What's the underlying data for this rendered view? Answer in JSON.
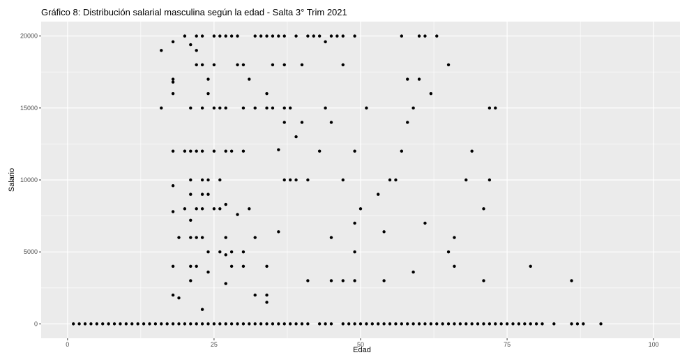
{
  "chart_data": {
    "type": "scatter",
    "title": "Gráfico 8: Distribución salarial masculina según la edad - Salta 3° Trim 2021",
    "xlabel": "Edad",
    "ylabel": "Salario",
    "xlim": [
      -4.5,
      104.5
    ],
    "ylim": [
      -1000,
      21000
    ],
    "x_ticks": [
      0,
      25,
      50,
      75,
      100
    ],
    "y_ticks": [
      0,
      5000,
      10000,
      15000,
      20000
    ],
    "x_tick_labels": [
      "0",
      "25",
      "50",
      "75",
      "100"
    ],
    "y_tick_labels": [
      "0",
      "5000",
      "10000",
      "15000",
      "20000"
    ],
    "grid": true,
    "legend": "none",
    "colors": {
      "panel": "#ebebeb",
      "grid": "#ffffff",
      "point": "#000000"
    },
    "points": [
      [
        1,
        0
      ],
      [
        2,
        0
      ],
      [
        3,
        0
      ],
      [
        4,
        0
      ],
      [
        5,
        0
      ],
      [
        6,
        0
      ],
      [
        7,
        0
      ],
      [
        8,
        0
      ],
      [
        9,
        0
      ],
      [
        10,
        0
      ],
      [
        11,
        0
      ],
      [
        12,
        0
      ],
      [
        13,
        0
      ],
      [
        14,
        0
      ],
      [
        15,
        0
      ],
      [
        16,
        0
      ],
      [
        17,
        0
      ],
      [
        18,
        0
      ],
      [
        19,
        0
      ],
      [
        20,
        0
      ],
      [
        21,
        0
      ],
      [
        22,
        0
      ],
      [
        23,
        0
      ],
      [
        24,
        0
      ],
      [
        25,
        0
      ],
      [
        26,
        0
      ],
      [
        27,
        0
      ],
      [
        28,
        0
      ],
      [
        29,
        0
      ],
      [
        30,
        0
      ],
      [
        31,
        0
      ],
      [
        32,
        0
      ],
      [
        33,
        0
      ],
      [
        34,
        0
      ],
      [
        35,
        0
      ],
      [
        36,
        0
      ],
      [
        37,
        0
      ],
      [
        38,
        0
      ],
      [
        39,
        0
      ],
      [
        40,
        0
      ],
      [
        41,
        0
      ],
      [
        43,
        0
      ],
      [
        44,
        0
      ],
      [
        45,
        0
      ],
      [
        47,
        0
      ],
      [
        48,
        0
      ],
      [
        49,
        0
      ],
      [
        50,
        0
      ],
      [
        51,
        0
      ],
      [
        52,
        0
      ],
      [
        53,
        0
      ],
      [
        54,
        0
      ],
      [
        55,
        0
      ],
      [
        56,
        0
      ],
      [
        57,
        0
      ],
      [
        58,
        0
      ],
      [
        59,
        0
      ],
      [
        60,
        0
      ],
      [
        61,
        0
      ],
      [
        62,
        0
      ],
      [
        63,
        0
      ],
      [
        64,
        0
      ],
      [
        65,
        0
      ],
      [
        66,
        0
      ],
      [
        67,
        0
      ],
      [
        68,
        0
      ],
      [
        69,
        0
      ],
      [
        70,
        0
      ],
      [
        71,
        0
      ],
      [
        72,
        0
      ],
      [
        73,
        0
      ],
      [
        74,
        0
      ],
      [
        75,
        0
      ],
      [
        76,
        0
      ],
      [
        77,
        0
      ],
      [
        78,
        0
      ],
      [
        79,
        0
      ],
      [
        80,
        0
      ],
      [
        81,
        0
      ],
      [
        83,
        0
      ],
      [
        86,
        0
      ],
      [
        87,
        0
      ],
      [
        88,
        0
      ],
      [
        91,
        0
      ],
      [
        20,
        20000
      ],
      [
        22,
        20000
      ],
      [
        23,
        20000
      ],
      [
        25,
        20000
      ],
      [
        26,
        20000
      ],
      [
        27,
        20000
      ],
      [
        28,
        20000
      ],
      [
        29,
        20000
      ],
      [
        32,
        20000
      ],
      [
        33,
        20000
      ],
      [
        34,
        20000
      ],
      [
        35,
        20000
      ],
      [
        36,
        20000
      ],
      [
        37,
        20000
      ],
      [
        39,
        20000
      ],
      [
        41,
        20000
      ],
      [
        42,
        20000
      ],
      [
        43,
        20000
      ],
      [
        45,
        20000
      ],
      [
        46,
        20000
      ],
      [
        47,
        20000
      ],
      [
        49,
        20000
      ],
      [
        57,
        20000
      ],
      [
        60,
        20000
      ],
      [
        61,
        20000
      ],
      [
        63,
        20000
      ],
      [
        16,
        19000
      ],
      [
        18,
        19600
      ],
      [
        21,
        19400
      ],
      [
        22,
        19000
      ],
      [
        44,
        19600
      ],
      [
        22,
        18000
      ],
      [
        23,
        18000
      ],
      [
        25,
        18000
      ],
      [
        29,
        18000
      ],
      [
        30,
        18000
      ],
      [
        35,
        18000
      ],
      [
        37,
        18000
      ],
      [
        40,
        18000
      ],
      [
        47,
        18000
      ],
      [
        65,
        18000
      ],
      [
        18,
        17000
      ],
      [
        18,
        16800
      ],
      [
        24,
        17000
      ],
      [
        31,
        17000
      ],
      [
        58,
        17000
      ],
      [
        60,
        17000
      ],
      [
        18,
        16000
      ],
      [
        24,
        16000
      ],
      [
        34,
        16000
      ],
      [
        62,
        16000
      ],
      [
        16,
        15000
      ],
      [
        21,
        15000
      ],
      [
        23,
        15000
      ],
      [
        25,
        15000
      ],
      [
        26,
        15000
      ],
      [
        27,
        15000
      ],
      [
        30,
        15000
      ],
      [
        32,
        15000
      ],
      [
        34,
        15000
      ],
      [
        35,
        15000
      ],
      [
        37,
        15000
      ],
      [
        38,
        15000
      ],
      [
        44,
        15000
      ],
      [
        51,
        15000
      ],
      [
        59,
        15000
      ],
      [
        72,
        15000
      ],
      [
        73,
        15000
      ],
      [
        37,
        14000
      ],
      [
        40,
        14000
      ],
      [
        45,
        14000
      ],
      [
        58,
        14000
      ],
      [
        39,
        13000
      ],
      [
        18,
        12000
      ],
      [
        20,
        12000
      ],
      [
        21,
        12000
      ],
      [
        22,
        12000
      ],
      [
        23,
        12000
      ],
      [
        25,
        12000
      ],
      [
        27,
        12000
      ],
      [
        28,
        12000
      ],
      [
        30,
        12000
      ],
      [
        36,
        12100
      ],
      [
        43,
        12000
      ],
      [
        49,
        12000
      ],
      [
        57,
        12000
      ],
      [
        69,
        12000
      ],
      [
        21,
        10000
      ],
      [
        23,
        10000
      ],
      [
        24,
        10000
      ],
      [
        26,
        10000
      ],
      [
        37,
        10000
      ],
      [
        38,
        10000
      ],
      [
        39,
        10000
      ],
      [
        41,
        10000
      ],
      [
        47,
        10000
      ],
      [
        55,
        10000
      ],
      [
        56,
        10000
      ],
      [
        68,
        10000
      ],
      [
        72,
        10000
      ],
      [
        18,
        9600
      ],
      [
        21,
        9000
      ],
      [
        23,
        9000
      ],
      [
        24,
        9000
      ],
      [
        53,
        9000
      ],
      [
        27,
        8300
      ],
      [
        20,
        8000
      ],
      [
        22,
        8000
      ],
      [
        23,
        8000
      ],
      [
        25,
        8000
      ],
      [
        26,
        8000
      ],
      [
        31,
        8000
      ],
      [
        50,
        8000
      ],
      [
        71,
        8000
      ],
      [
        18,
        7800
      ],
      [
        29,
        7600
      ],
      [
        21,
        7200
      ],
      [
        49,
        7000
      ],
      [
        61,
        7000
      ],
      [
        19,
        6000
      ],
      [
        21,
        6000
      ],
      [
        22,
        6000
      ],
      [
        23,
        6000
      ],
      [
        27,
        6000
      ],
      [
        32,
        6000
      ],
      [
        45,
        6000
      ],
      [
        66,
        6000
      ],
      [
        36,
        6400
      ],
      [
        54,
        6400
      ],
      [
        24,
        5000
      ],
      [
        26,
        5000
      ],
      [
        27,
        4800
      ],
      [
        28,
        5000
      ],
      [
        30,
        5000
      ],
      [
        49,
        5000
      ],
      [
        65,
        5000
      ],
      [
        18,
        4000
      ],
      [
        21,
        4000
      ],
      [
        22,
        4000
      ],
      [
        28,
        4000
      ],
      [
        30,
        4000
      ],
      [
        34,
        4000
      ],
      [
        66,
        4000
      ],
      [
        79,
        4000
      ],
      [
        24,
        3600
      ],
      [
        59,
        3600
      ],
      [
        21,
        3000
      ],
      [
        41,
        3000
      ],
      [
        45,
        3000
      ],
      [
        47,
        3000
      ],
      [
        49,
        3000
      ],
      [
        54,
        3000
      ],
      [
        71,
        3000
      ],
      [
        86,
        3000
      ],
      [
        27,
        2800
      ],
      [
        18,
        2000
      ],
      [
        19,
        1800
      ],
      [
        32,
        2000
      ],
      [
        34,
        2000
      ],
      [
        34,
        1500
      ],
      [
        23,
        1000
      ]
    ]
  }
}
